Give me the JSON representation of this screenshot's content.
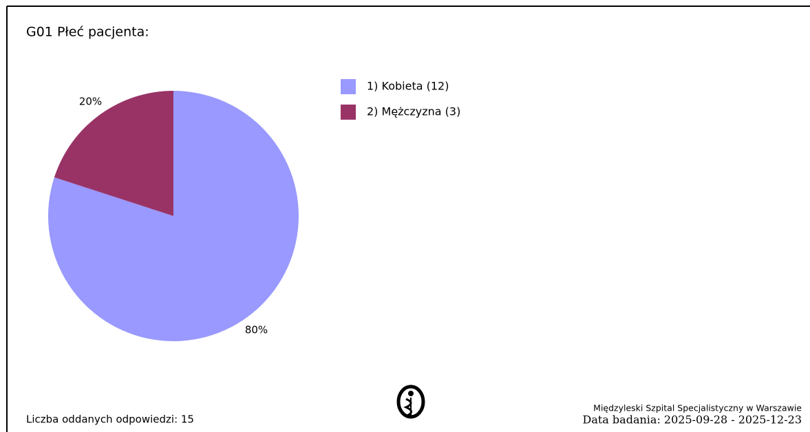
{
  "chart_data": {
    "type": "pie",
    "title": "G01 Płeć pacjenta:",
    "categories": [
      "1) Kobieta (12)",
      "2) Mężczyzna (3)"
    ],
    "values": [
      80,
      20
    ],
    "value_labels": [
      "80%",
      "20%"
    ],
    "colors": [
      "#9999ff",
      "#993366"
    ],
    "legend": "right"
  },
  "footer": {
    "responses": "Liczba oddanych odpowiedzi: 15",
    "hospital": "Międzyleski Szpital Specjalistyczny w Warszawie",
    "dates": "Data badania: 2025-09-28 - 2025-12-23"
  }
}
